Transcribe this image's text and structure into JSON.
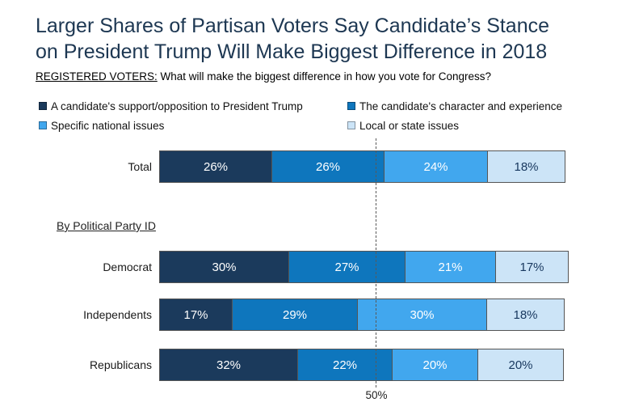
{
  "title": "Larger Shares of Partisan Voters Say Candidate’s Stance\non President Trump Will Make Biggest Difference in 2018",
  "subtitle": {
    "prefix": "REGISTERED VOTERS:",
    "text": " What will make the biggest difference in how you vote for Congress?"
  },
  "chart_data": {
    "type": "bar",
    "stacked": true,
    "orientation": "horizontal",
    "xlim": [
      0,
      100
    ],
    "value_suffix": "%",
    "categories": [
      "Total",
      "Democrat",
      "Independents",
      "Republicans"
    ],
    "series": [
      {
        "name": "A candidate's support/opposition to President Trump",
        "color": "#1b3a5c",
        "value_text_color": "#ffffff",
        "values": [
          26,
          30,
          17,
          32
        ]
      },
      {
        "name": "The candidate's character and experience",
        "color": "#0e76bd",
        "value_text_color": "#ffffff",
        "values": [
          26,
          27,
          29,
          22
        ]
      },
      {
        "name": "Specific national issues",
        "color": "#41a7ee",
        "value_text_color": "#ffffff",
        "values": [
          24,
          21,
          30,
          20
        ]
      },
      {
        "name": "Local or state issues",
        "color": "#cce4f7",
        "value_text_color": "#17375e",
        "values": [
          18,
          17,
          18,
          20
        ]
      }
    ],
    "section_label": "By Political Party ID",
    "reference_line": {
      "value": 50,
      "label": "50%"
    },
    "legend_position": "top",
    "grid": false
  }
}
